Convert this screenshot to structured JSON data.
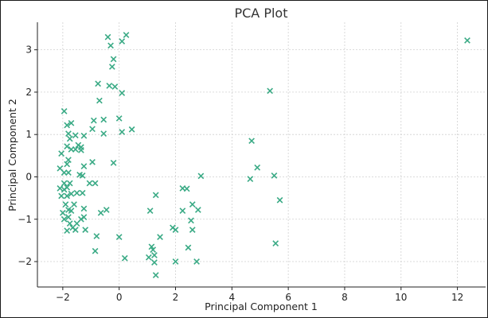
{
  "chart_data": {
    "type": "scatter",
    "title": "PCA Plot",
    "xlabel": "Principal Component 1",
    "ylabel": "Principal Component 2",
    "xlim": [
      -2.9,
      13.0
    ],
    "ylim": [
      -2.6,
      3.65
    ],
    "xticks": [
      -2,
      0,
      2,
      4,
      6,
      8,
      10,
      12
    ],
    "yticks": [
      -2,
      -1,
      0,
      1,
      2,
      3
    ],
    "grid": true,
    "marker": "x",
    "color": "#3aaa85",
    "points": [
      [
        -0.4,
        3.3
      ],
      [
        0.25,
        3.35
      ],
      [
        0.1,
        3.2
      ],
      [
        -0.3,
        3.1
      ],
      [
        -0.2,
        2.78
      ],
      [
        -0.25,
        2.6
      ],
      [
        -0.75,
        2.2
      ],
      [
        -0.35,
        2.15
      ],
      [
        -0.15,
        2.13
      ],
      [
        0.1,
        1.98
      ],
      [
        5.35,
        2.03
      ],
      [
        12.35,
        3.22
      ],
      [
        -0.7,
        1.8
      ],
      [
        -1.95,
        1.55
      ],
      [
        -0.55,
        1.35
      ],
      [
        -0.9,
        1.33
      ],
      [
        0.0,
        1.38
      ],
      [
        -1.85,
        1.22
      ],
      [
        -1.7,
        1.27
      ],
      [
        0.45,
        1.12
      ],
      [
        -0.95,
        1.13
      ],
      [
        -1.25,
        0.97
      ],
      [
        -1.55,
        0.98
      ],
      [
        -1.8,
        1.02
      ],
      [
        0.1,
        1.06
      ],
      [
        -0.55,
        1.02
      ],
      [
        -1.75,
        0.9
      ],
      [
        4.7,
        0.85
      ],
      [
        -1.45,
        0.75
      ],
      [
        -1.85,
        0.72
      ],
      [
        -1.55,
        0.65
      ],
      [
        -1.7,
        0.65
      ],
      [
        -1.35,
        0.7
      ],
      [
        -1.35,
        0.63
      ],
      [
        -2.05,
        0.55
      ],
      [
        -0.2,
        0.33
      ],
      [
        -1.8,
        0.4
      ],
      [
        -0.95,
        0.35
      ],
      [
        -1.25,
        0.25
      ],
      [
        -1.85,
        0.3
      ],
      [
        4.9,
        0.22
      ],
      [
        -2.1,
        0.2
      ],
      [
        -1.4,
        0.05
      ],
      [
        -1.3,
        0.03
      ],
      [
        -1.8,
        0.1
      ],
      [
        -1.95,
        0.1
      ],
      [
        5.5,
        0.03
      ],
      [
        2.9,
        0.02
      ],
      [
        4.65,
        -0.05
      ],
      [
        -1.05,
        -0.15
      ],
      [
        -0.85,
        -0.15
      ],
      [
        -1.95,
        -0.15
      ],
      [
        -1.75,
        -0.15
      ],
      [
        -1.85,
        -0.25
      ],
      [
        -2.1,
        -0.27
      ],
      [
        -1.95,
        -0.3
      ],
      [
        2.25,
        -0.27
      ],
      [
        2.4,
        -0.28
      ],
      [
        -1.7,
        -0.4
      ],
      [
        -1.5,
        -0.38
      ],
      [
        -1.3,
        -0.38
      ],
      [
        -2.05,
        -0.45
      ],
      [
        -1.85,
        -0.45
      ],
      [
        1.3,
        -0.43
      ],
      [
        -1.6,
        -0.65
      ],
      [
        -1.9,
        -0.65
      ],
      [
        5.7,
        -0.55
      ],
      [
        2.6,
        -0.65
      ],
      [
        -0.45,
        -0.78
      ],
      [
        -1.25,
        -0.75
      ],
      [
        -0.65,
        -0.85
      ],
      [
        -1.8,
        -0.78
      ],
      [
        -1.7,
        -0.8
      ],
      [
        2.25,
        -0.8
      ],
      [
        2.8,
        -0.78
      ],
      [
        -1.25,
        -0.95
      ],
      [
        -1.35,
        -1.0
      ],
      [
        -1.8,
        -0.95
      ],
      [
        1.1,
        -0.8
      ],
      [
        2.55,
        -1.03
      ],
      [
        -1.95,
        -1.0
      ],
      [
        -2.0,
        -0.85
      ],
      [
        -1.75,
        -1.1
      ],
      [
        -1.5,
        -1.1
      ],
      [
        -1.65,
        -1.2
      ],
      [
        -1.85,
        -1.27
      ],
      [
        -1.2,
        -1.25
      ],
      [
        -1.55,
        -1.25
      ],
      [
        2.6,
        -1.25
      ],
      [
        1.9,
        -1.2
      ],
      [
        2.0,
        -1.25
      ],
      [
        -0.8,
        -1.4
      ],
      [
        0.0,
        -1.42
      ],
      [
        1.45,
        -1.42
      ],
      [
        5.55,
        -1.57
      ],
      [
        -0.85,
        -1.75
      ],
      [
        1.15,
        -1.65
      ],
      [
        1.2,
        -1.72
      ],
      [
        2.45,
        -1.67
      ],
      [
        1.25,
        -1.85
      ],
      [
        1.05,
        -1.9
      ],
      [
        0.2,
        -1.92
      ],
      [
        1.25,
        -2.02
      ],
      [
        2.0,
        -2.0
      ],
      [
        2.75,
        -2.0
      ],
      [
        1.3,
        -2.32
      ]
    ]
  }
}
